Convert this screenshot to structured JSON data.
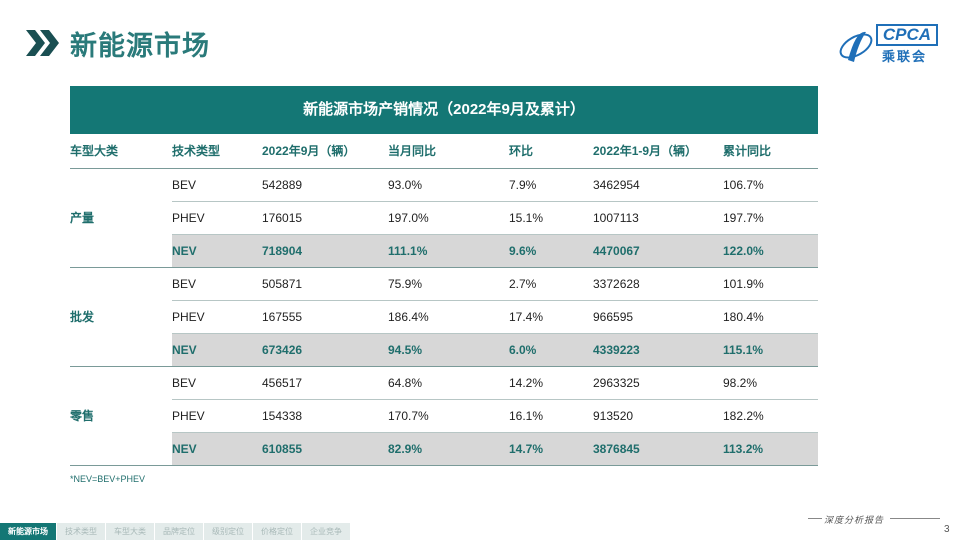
{
  "header": {
    "title": "新能源市场"
  },
  "logo": {
    "text": "CPCA",
    "sub": "乘联会"
  },
  "table": {
    "title": "新能源市场产销情况（2022年9月及累计）",
    "columns": [
      "车型大类",
      "技术类型",
      "2022年9月（辆）",
      "当月同比",
      "环比",
      "2022年1-9月（辆）",
      "累计同比"
    ],
    "groups": [
      {
        "name": "产量",
        "rows": [
          [
            "BEV",
            "542889",
            "93.0%",
            "7.9%",
            "3462954",
            "106.7%"
          ],
          [
            "PHEV",
            "176015",
            "197.0%",
            "15.1%",
            "1007113",
            "197.7%"
          ],
          [
            "NEV",
            "718904",
            "111.1%",
            "9.6%",
            "4470067",
            "122.0%"
          ]
        ]
      },
      {
        "name": "批发",
        "rows": [
          [
            "BEV",
            "505871",
            "75.9%",
            "2.7%",
            "3372628",
            "101.9%"
          ],
          [
            "PHEV",
            "167555",
            "186.4%",
            "17.4%",
            "966595",
            "180.4%"
          ],
          [
            "NEV",
            "673426",
            "94.5%",
            "6.0%",
            "4339223",
            "115.1%"
          ]
        ]
      },
      {
        "name": "零售",
        "rows": [
          [
            "BEV",
            "456517",
            "64.8%",
            "14.2%",
            "2963325",
            "98.2%"
          ],
          [
            "PHEV",
            "154338",
            "170.7%",
            "16.1%",
            "913520",
            "182.2%"
          ],
          [
            "NEV",
            "610855",
            "82.9%",
            "14.7%",
            "3876845",
            "113.2%"
          ]
        ]
      }
    ]
  },
  "footnote": "*NEV=BEV+PHEV",
  "footer": {
    "report_label": "深度分析报告",
    "page_number": "3"
  },
  "bottom_nav": [
    "新能源市场",
    "技术类型",
    "车型大类",
    "品牌定位",
    "级别定位",
    "价格定位",
    "企业竞争"
  ],
  "colors": {
    "accent": "#147775",
    "text_accent": "#1f6e6c",
    "logo_blue": "#1f6fb8",
    "nev_row_bg": "#d7d7d7"
  }
}
